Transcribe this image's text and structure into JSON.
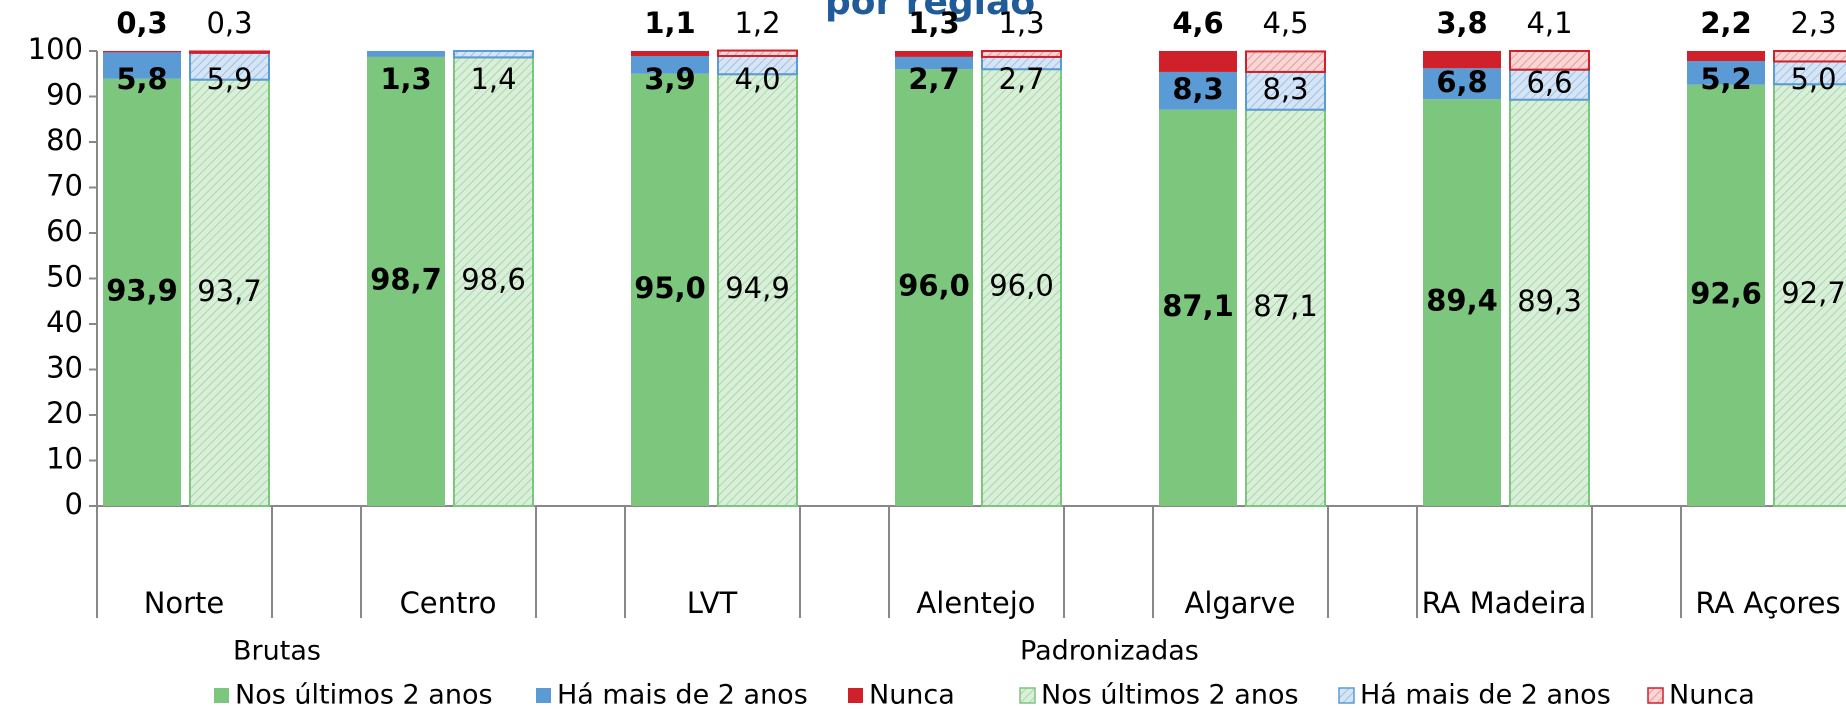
{
  "chart_data": {
    "type": "stacked-bar",
    "title": "por região",
    "categories": [
      "Norte",
      "Centro",
      "LVT",
      "Alentejo",
      "Algarve",
      "RA Madeira",
      "RA Açores"
    ],
    "ylim": [
      0,
      100
    ],
    "yticks": [
      0,
      10,
      20,
      30,
      40,
      50,
      60,
      70,
      80,
      90,
      100
    ],
    "groups": [
      {
        "name": "Brutas",
        "hatched": false,
        "series": [
          {
            "name": "Nos últimos 2 anos",
            "color": "#7dc67d",
            "values": [
              93.9,
              98.7,
              95.0,
              96.0,
              87.1,
              89.4,
              92.6
            ],
            "value_labels": [
              "93,9",
              "98,7",
              "95,0",
              "96,0",
              "87,1",
              "89,4",
              "92,6"
            ]
          },
          {
            "name": "Há mais de 2 anos",
            "color": "#5b9bd5",
            "values": [
              5.8,
              1.3,
              3.9,
              2.7,
              8.3,
              6.8,
              5.2
            ],
            "value_labels": [
              "5,8",
              "1,3",
              "3,9",
              "2,7",
              "8,3",
              "6,8",
              "5,2"
            ]
          },
          {
            "name": "Nunca",
            "color": "#d0202a",
            "values": [
              0.3,
              null,
              1.1,
              1.3,
              4.6,
              3.8,
              2.2
            ],
            "value_labels": [
              "0,3",
              null,
              "1,1",
              "1,3",
              "4,6",
              "3,8",
              "2,2"
            ]
          }
        ]
      },
      {
        "name": "Padronizadas",
        "hatched": true,
        "series": [
          {
            "name": "Nos últimos 2 anos",
            "color": "#7dc67d",
            "values": [
              93.7,
              98.6,
              94.9,
              96.0,
              87.1,
              89.3,
              92.7
            ],
            "value_labels": [
              "93,7",
              "98,6",
              "94,9",
              "96,0",
              "87,1",
              "89,3",
              "92,7"
            ]
          },
          {
            "name": "Há mais de 2 anos",
            "color": "#5b9bd5",
            "values": [
              5.9,
              1.4,
              4.0,
              2.7,
              8.3,
              6.6,
              5.0
            ],
            "value_labels": [
              "5,9",
              "1,4",
              "4,0",
              "2,7",
              "8,3",
              "6,6",
              "5,0"
            ]
          },
          {
            "name": "Nunca",
            "color": "#d0202a",
            "values": [
              0.3,
              null,
              1.2,
              1.3,
              4.5,
              4.1,
              2.3
            ],
            "value_labels": [
              "0,3",
              null,
              "1,2",
              "1,3",
              "4,5",
              "4,1",
              "2,3"
            ]
          }
        ]
      }
    ]
  }
}
